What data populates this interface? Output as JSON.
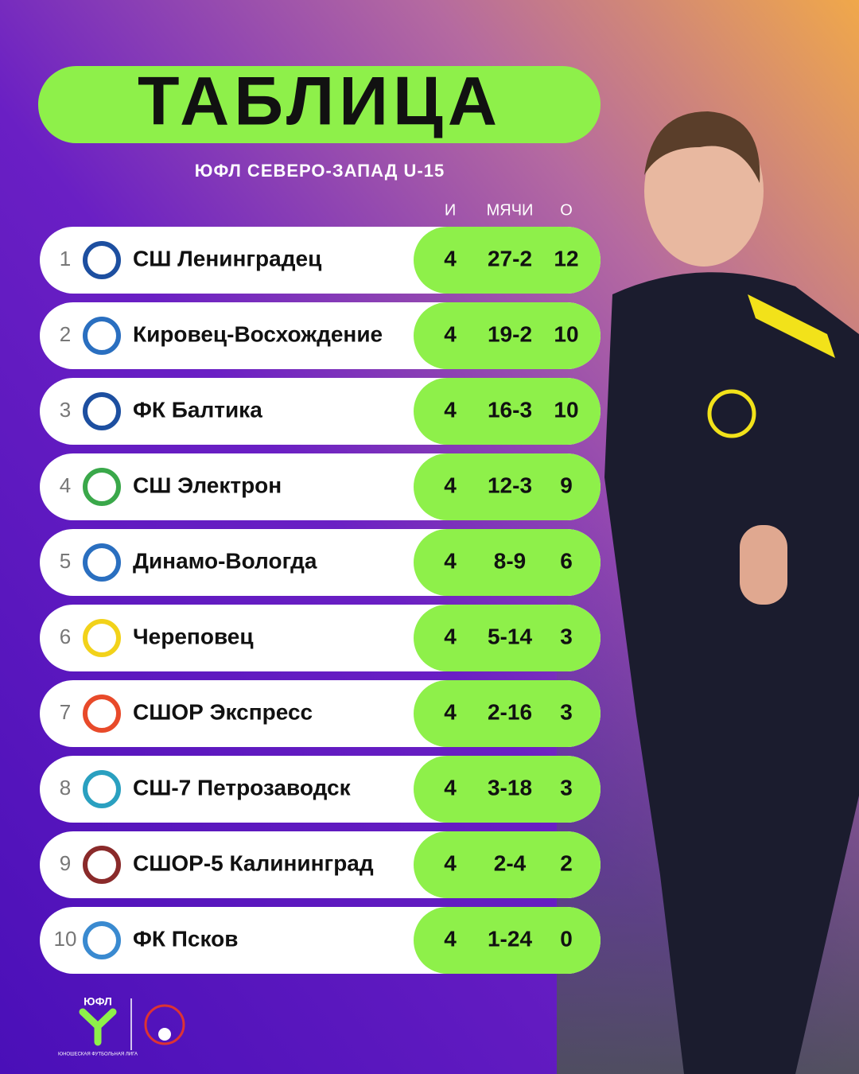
{
  "header": {
    "title": "ТАБЛИЦА",
    "subtitle": "ЮФЛ СЕВЕРО-ЗАПАД U-15"
  },
  "table": {
    "columns": [
      "И",
      "МЯЧИ",
      "О"
    ],
    "rows": [
      {
        "rank": 1,
        "team": "СШ Ленинградец",
        "games": 4,
        "goals": "27-2",
        "points": 12
      },
      {
        "rank": 2,
        "team": "Кировец-Восхождение",
        "games": 4,
        "goals": "19-2",
        "points": 10
      },
      {
        "rank": 3,
        "team": "ФК Балтика",
        "games": 4,
        "goals": "16-3",
        "points": 10
      },
      {
        "rank": 4,
        "team": "СШ Электрон",
        "games": 4,
        "goals": "12-3",
        "points": 9
      },
      {
        "rank": 5,
        "team": "Динамо-Вологда",
        "games": 4,
        "goals": "8-9",
        "points": 6
      },
      {
        "rank": 6,
        "team": "Череповец",
        "games": 4,
        "goals": "5-14",
        "points": 3
      },
      {
        "rank": 7,
        "team": "СШОР Экспресс",
        "games": 4,
        "goals": "2-16",
        "points": 3
      },
      {
        "rank": 8,
        "team": "СШ-7 Петрозаводск",
        "games": 4,
        "goals": "3-18",
        "points": 3
      },
      {
        "rank": 9,
        "team": "СШОР-5 Калининград",
        "games": 4,
        "goals": "2-4",
        "points": 2
      },
      {
        "rank": 10,
        "team": "ФК Псков",
        "games": 4,
        "goals": "1-24",
        "points": 0
      }
    ]
  },
  "footer": {
    "logo_text": "ЮФЛ",
    "logo_caption": "ЮНОШЕСКАЯ ФУТБОЛЬНАЯ ЛИГА"
  }
}
